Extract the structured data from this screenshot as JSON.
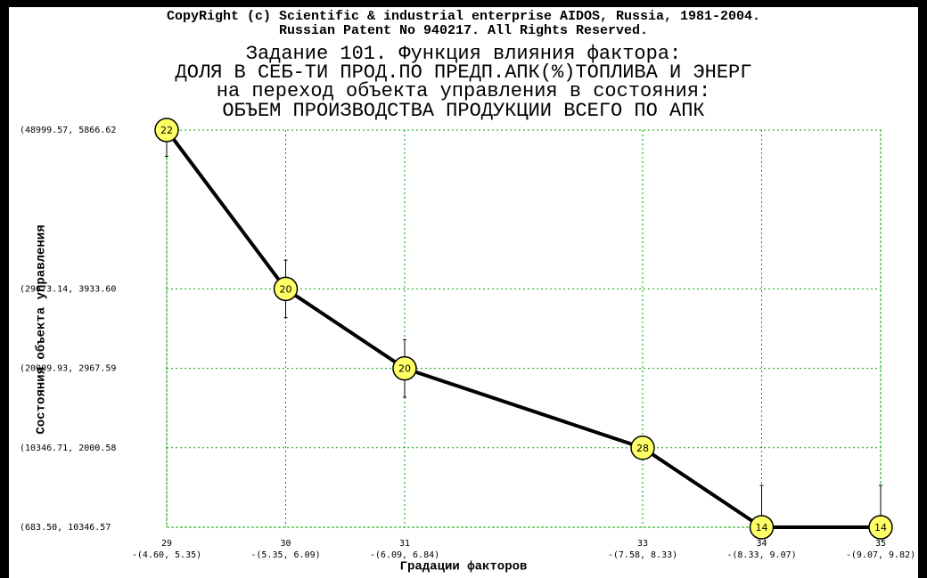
{
  "chart_data": {
    "type": "line",
    "copyright": [
      "CopyRight (c) Scientific & industrial enterprise AIDOS, Russia, 1981-2004.",
      "Russian Patent No 940217. All Rights Reserved."
    ],
    "title": [
      "Задание 101. Функция влияния фактора:",
      "ДОЛЯ В СЕБ-ТИ ПРОД.ПО ПРЕДП.АПК(%)ТОПЛИВА И ЭНЕРГ",
      "на переход объекта управления в состояния:",
      "ОБЪЕМ ПРОИЗВОДСТВА ПРОДУКЦИИ ВСЕГО ПО АПК"
    ],
    "x_label": "Градации факторов",
    "y_label": "Состояния объекта управления",
    "x": [
      29,
      30,
      31,
      33,
      34,
      35
    ],
    "values": [
      48999.57,
      29673.14,
      20009.93,
      10346.71,
      683.5,
      683.5
    ],
    "errors": [
      3200,
      3500,
      3500,
      null,
      5100,
      5100
    ],
    "point_labels": [
      "22",
      "20",
      "20",
      "28",
      "14",
      "14"
    ],
    "color": "#000000",
    "marker_color": "#ffff66",
    "grid_color": "#00aa00",
    "xlim": [
      29,
      35
    ],
    "ylim": [
      683.5,
      48999.57
    ],
    "xticks": [
      29,
      30,
      31,
      33,
      34,
      35
    ],
    "xtick_sublabels": [
      "-(4.60, 5.35)",
      "-(5.35, 6.09)",
      "-(6.09, 6.84)",
      "-(7.58, 8.33)",
      "-(8.33, 9.07)",
      "-(9.07, 9.82)"
    ],
    "yticks": [
      {
        "value": 48999.57,
        "label": "(48999.57, 5866.62"
      },
      {
        "value": 29673.14,
        "label": "(29673.14, 3933.60"
      },
      {
        "value": 20009.93,
        "label": "(20009.93, 2967.59"
      },
      {
        "value": 10346.71,
        "label": "(10346.71, 2000.58"
      },
      {
        "value": 683.5,
        "label": "(683.50, 10346.57"
      }
    ],
    "grid": true
  }
}
